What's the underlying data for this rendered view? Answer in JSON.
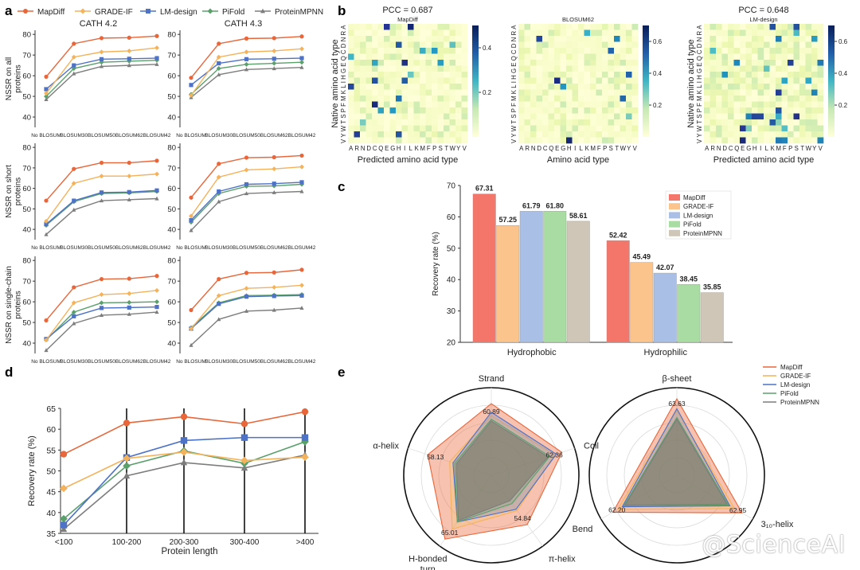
{
  "panel_labels": {
    "a": "a",
    "b": "b",
    "c": "c",
    "d": "d",
    "e": "e"
  },
  "colors": {
    "MapDiff": "#e8663a",
    "GRADE-IF": "#f4b25a",
    "LM-design": "#4d72c6",
    "PiFold": "#5aa06b",
    "ProteinMPNN": "#7d7d7d",
    "bar_MapDiff": "#f4756a",
    "bar_GRADE-IF": "#fbc48c",
    "bar_LM-design": "#a9bfe6",
    "bar_PiFold": "#a8dca3",
    "bar_ProteinMPNN": "#cfc6b8"
  },
  "legend_a": [
    "MapDiff",
    "GRADE-IF",
    "LM-design",
    "PiFold",
    "ProteinMPNN"
  ],
  "watermark": "@ScienceAI",
  "chart_data": [
    {
      "id": "a",
      "type": "line",
      "columns": [
        "CATH 4.2",
        "CATH 4.3"
      ],
      "row_labels": [
        [
          "NSSR on all",
          "proteins"
        ],
        [
          "NSSR on short",
          "proteins"
        ],
        [
          "NSSR on single-chain",
          "proteins"
        ]
      ],
      "categories": [
        "No BLOSUM",
        "BLOSUM30",
        "BLOSUM50",
        "BLOSUM62",
        "BLOSUM42"
      ],
      "yticks": [
        [
          40,
          50,
          60,
          70,
          80
        ],
        [
          40,
          50,
          60,
          70,
          80
        ],
        [
          40,
          50,
          60,
          70,
          80
        ]
      ],
      "panels": [
        {
          "row": 0,
          "col": 0,
          "ylim": [
            35,
            82
          ],
          "series": [
            {
              "name": "MapDiff",
              "values": [
                59.5,
                75.5,
                78.2,
                78.4,
                79.2
              ]
            },
            {
              "name": "GRADE-IF",
              "values": [
                51.5,
                69.0,
                71.5,
                72.0,
                73.5
              ]
            },
            {
              "name": "LM-design",
              "values": [
                53.5,
                65.0,
                68.0,
                68.2,
                68.5
              ]
            },
            {
              "name": "PiFold",
              "values": [
                50.0,
                63.5,
                66.5,
                67.0,
                67.5
              ]
            },
            {
              "name": "ProteinMPNN",
              "values": [
                48.5,
                61.0,
                64.5,
                65.0,
                65.5
              ]
            }
          ]
        },
        {
          "row": 0,
          "col": 1,
          "ylim": [
            35,
            82
          ],
          "series": [
            {
              "name": "MapDiff",
              "values": [
                59.0,
                75.5,
                78.0,
                78.2,
                79.0
              ]
            },
            {
              "name": "GRADE-IF",
              "values": [
                50.5,
                69.0,
                71.5,
                72.0,
                73.0
              ]
            },
            {
              "name": "LM-design",
              "values": [
                55.5,
                66.0,
                68.0,
                68.2,
                68.5
              ]
            },
            {
              "name": "PiFold",
              "values": [
                51.0,
                63.5,
                65.5,
                66.0,
                66.5
              ]
            },
            {
              "name": "ProteinMPNN",
              "values": [
                49.5,
                60.5,
                63.0,
                63.5,
                64.0
              ]
            }
          ]
        },
        {
          "row": 1,
          "col": 0,
          "ylim": [
            35,
            82
          ],
          "series": [
            {
              "name": "MapDiff",
              "values": [
                54.0,
                69.5,
                72.5,
                72.5,
                73.5
              ]
            },
            {
              "name": "GRADE-IF",
              "values": [
                44.0,
                62.5,
                66.0,
                66.0,
                67.0
              ]
            },
            {
              "name": "LM-design",
              "values": [
                42.5,
                54.0,
                58.0,
                58.2,
                59.0
              ]
            },
            {
              "name": "PiFold",
              "values": [
                42.0,
                53.5,
                57.5,
                57.8,
                58.5
              ]
            },
            {
              "name": "ProteinMPNN",
              "values": [
                37.5,
                49.5,
                54.0,
                54.5,
                55.0
              ]
            }
          ]
        },
        {
          "row": 1,
          "col": 1,
          "ylim": [
            35,
            82
          ],
          "series": [
            {
              "name": "MapDiff",
              "values": [
                55.5,
                72.0,
                75.0,
                75.2,
                76.0
              ]
            },
            {
              "name": "GRADE-IF",
              "values": [
                46.5,
                65.5,
                69.0,
                69.5,
                70.5
              ]
            },
            {
              "name": "LM-design",
              "values": [
                44.5,
                58.5,
                62.0,
                62.3,
                63.0
              ]
            },
            {
              "name": "PiFold",
              "values": [
                43.5,
                57.5,
                61.0,
                61.2,
                62.0
              ]
            },
            {
              "name": "ProteinMPNN",
              "values": [
                39.5,
                53.5,
                57.5,
                58.0,
                58.5
              ]
            }
          ]
        },
        {
          "row": 2,
          "col": 0,
          "ylim": [
            35,
            82
          ],
          "series": [
            {
              "name": "MapDiff",
              "values": [
                51.0,
                67.0,
                71.0,
                71.2,
                72.5
              ]
            },
            {
              "name": "GRADE-IF",
              "values": [
                41.5,
                59.5,
                63.5,
                64.0,
                65.5
              ]
            },
            {
              "name": "LM-design",
              "values": [
                42.0,
                53.0,
                57.0,
                57.2,
                57.5
              ]
            },
            {
              "name": "PiFold",
              "values": [
                41.5,
                55.0,
                59.5,
                59.7,
                60.0
              ]
            },
            {
              "name": "ProteinMPNN",
              "values": [
                36.5,
                49.5,
                53.5,
                54.0,
                55.0
              ]
            }
          ]
        },
        {
          "row": 2,
          "col": 1,
          "ylim": [
            35,
            82
          ],
          "series": [
            {
              "name": "MapDiff",
              "values": [
                56.0,
                71.0,
                74.0,
                74.2,
                75.5
              ]
            },
            {
              "name": "GRADE-IF",
              "values": [
                47.0,
                63.0,
                66.5,
                67.0,
                68.0
              ]
            },
            {
              "name": "LM-design",
              "values": [
                47.0,
                59.0,
                62.5,
                62.8,
                63.0
              ]
            },
            {
              "name": "PiFold",
              "values": [
                47.5,
                59.5,
                63.0,
                63.2,
                63.5
              ]
            },
            {
              "name": "ProteinMPNN",
              "values": [
                39.0,
                51.5,
                55.5,
                56.0,
                57.0
              ]
            }
          ]
        }
      ]
    },
    {
      "id": "b",
      "type": "heatmap",
      "maps": [
        {
          "name": "MapDiff",
          "pcc": "PCC = 0.687",
          "xlabel": "Predicted amino acid type",
          "ylabel": "Native amino acid type",
          "cbar_ticks": [
            "0.2",
            "0.4"
          ],
          "cbar_max": 0.5,
          "cbar_tick_values": [
            0.2,
            0.4
          ]
        },
        {
          "name": "BLOSUM62",
          "pcc": "",
          "xlabel": "Amino acid type",
          "ylabel": "",
          "cbar_ticks": [
            "0.2",
            "0.4",
            "0.6"
          ],
          "cbar_max": 0.7,
          "cbar_tick_values": [
            0.2,
            0.4,
            0.6
          ]
        },
        {
          "name": "LM-design",
          "pcc": "PCC = 0.648",
          "xlabel": "Predicted amino acid type",
          "ylabel": "Native amino acid type",
          "cbar_ticks": [
            "0.2",
            "0.4",
            "0.6"
          ],
          "cbar_max": 0.7,
          "cbar_tick_values": [
            0.2,
            0.4,
            0.6
          ]
        }
      ],
      "x_labels": [
        "A",
        "R",
        "N",
        "D",
        "C",
        "Q",
        "E",
        "G",
        "H",
        "I",
        "L",
        "K",
        "M",
        "F",
        "P",
        "S",
        "T",
        "W",
        "Y",
        "V"
      ],
      "y_labels_top_to_bottom": [
        "A",
        "R",
        "N",
        "D",
        "C",
        "Q",
        "E",
        "G",
        "H",
        "I",
        "L",
        "K",
        "M",
        "F",
        "P",
        "S",
        "T",
        "W",
        "Y",
        "V"
      ],
      "y_axis_label_text_bottom_to_top": "VYWTSPFMKLIHGEQCDNRA"
    },
    {
      "id": "c",
      "type": "bar",
      "categories": [
        "Hydrophobic",
        "Hydrophilic"
      ],
      "series": [
        {
          "name": "MapDiff",
          "values": [
            67.31,
            52.42
          ],
          "labels": [
            "67.31",
            "52.42"
          ]
        },
        {
          "name": "GRADE-IF",
          "values": [
            57.25,
            45.49
          ],
          "labels": [
            "57.25",
            "45.49"
          ]
        },
        {
          "name": "LM-design",
          "values": [
            61.79,
            42.07
          ],
          "labels": [
            "61.79",
            "42.07"
          ]
        },
        {
          "name": "PiFold",
          "values": [
            61.8,
            38.45
          ],
          "labels": [
            "61.80",
            "38.45"
          ]
        },
        {
          "name": "ProteinMPNN",
          "values": [
            58.61,
            35.85
          ],
          "labels": [
            "58.61",
            "35.85"
          ]
        }
      ],
      "ylabel": "Recovery rate (%)",
      "ylim": [
        20,
        70
      ],
      "yticks": [
        20,
        30,
        40,
        50,
        60,
        70
      ],
      "legend": "top-right"
    },
    {
      "id": "d",
      "type": "line",
      "categories": [
        "<100",
        "100-200",
        "200-300",
        "300-400",
        ">400"
      ],
      "series": [
        {
          "name": "MapDiff",
          "values": [
            54.0,
            61.5,
            63.0,
            61.3,
            64.2
          ]
        },
        {
          "name": "GRADE-IF",
          "values": [
            45.8,
            53.0,
            54.5,
            52.5,
            53.3
          ]
        },
        {
          "name": "LM-design",
          "values": [
            37.0,
            53.2,
            57.3,
            58.0,
            58.0
          ]
        },
        {
          "name": "PiFold",
          "values": [
            38.5,
            51.2,
            54.8,
            51.8,
            57.0
          ]
        },
        {
          "name": "ProteinMPNN",
          "values": [
            36.0,
            48.8,
            52.0,
            50.7,
            53.8
          ]
        }
      ],
      "xlabel": "Protein length",
      "ylabel": "Recovery rate (%)",
      "ylim": [
        35,
        65
      ],
      "yticks": [
        35,
        40,
        45,
        50,
        55,
        60,
        65
      ]
    },
    {
      "id": "e",
      "type": "radar",
      "charts": [
        {
          "axes": [
            "Strand",
            "Coil",
            "π-helix",
            "H-bonded turn",
            "α-helix"
          ],
          "rmax": 70,
          "value_labels": [
            "60.89",
            "62.36",
            "54.84",
            "65.01",
            "58.13"
          ],
          "series": [
            {
              "name": "MapDiff",
              "values": [
                60.89,
                62.36,
                54.84,
                65.01,
                58.13
              ]
            },
            {
              "name": "GRADE-IF",
              "values": [
                54,
                58,
                45,
                58,
                45
              ]
            },
            {
              "name": "LM-design",
              "values": [
                56,
                59,
                44,
                53,
                43
              ]
            },
            {
              "name": "PiFold",
              "values": [
                52,
                55,
                40,
                53,
                42
              ]
            },
            {
              "name": "ProteinMPNN",
              "values": [
                51,
                54,
                38,
                52,
                41
              ]
            }
          ]
        },
        {
          "axes": [
            "β-sheet",
            "3₁₀-helix",
            "Bend"
          ],
          "rmax": 70,
          "value_labels": [
            "63.63",
            "62.95",
            "62.20"
          ],
          "series": [
            {
              "name": "MapDiff",
              "values": [
                63.63,
                62.95,
                62.2
              ]
            },
            {
              "name": "GRADE-IF",
              "values": [
                57,
                58,
                59
              ]
            },
            {
              "name": "LM-design",
              "values": [
                58,
                55,
                56
              ]
            },
            {
              "name": "PiFold",
              "values": [
                53,
                54,
                55
              ]
            },
            {
              "name": "ProteinMPNN",
              "values": [
                52,
                53,
                54
              ]
            }
          ]
        }
      ],
      "legend": [
        "MapDiff",
        "GRADE-IF",
        "LM-design",
        "PiFold",
        "ProteinMPNN"
      ]
    }
  ]
}
